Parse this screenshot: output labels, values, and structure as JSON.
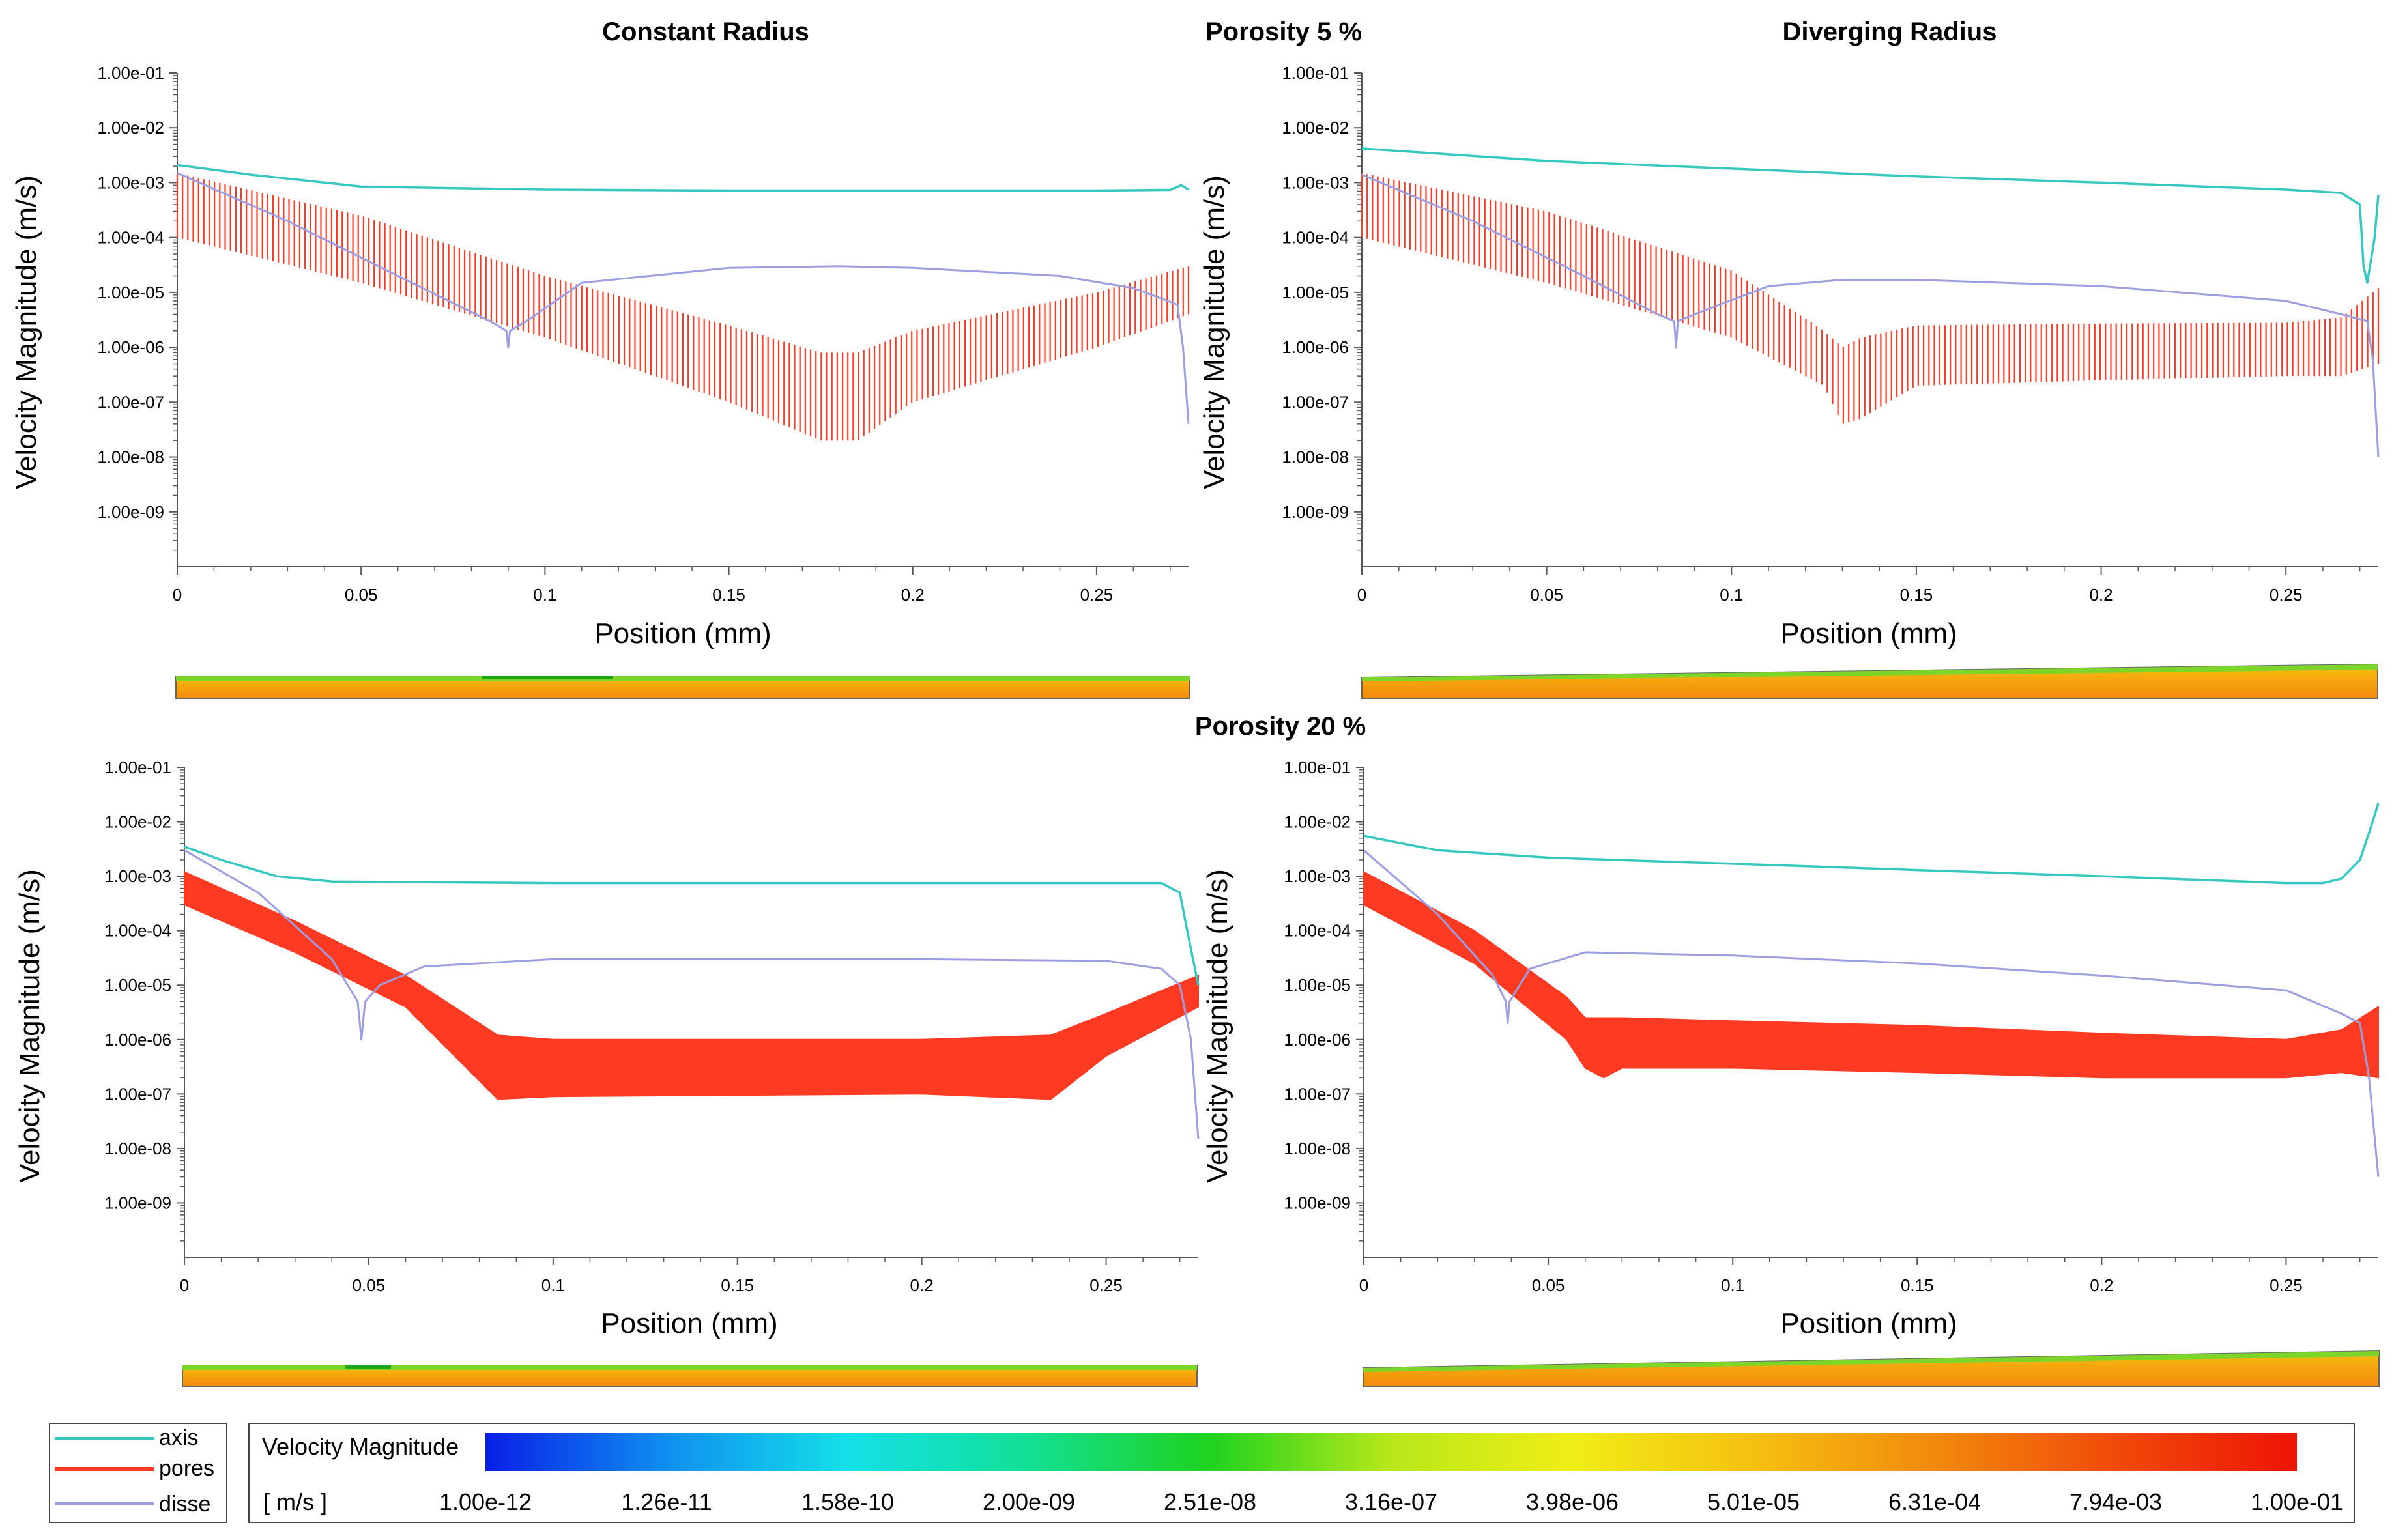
{
  "headers": {
    "left": "Constant Radius",
    "center_top": "Porosity 5 %",
    "right": "Diverging Radius",
    "center_bottom": "Porosity 20 %"
  },
  "legend": {
    "items": [
      {
        "label": "axis",
        "color": "#36c8c0"
      },
      {
        "label": "pores",
        "color": "#ff3a22"
      },
      {
        "label": "disse",
        "color": "#9d9ee0"
      }
    ]
  },
  "colorbar": {
    "title": "Velocity Magnitude",
    "units": "[ m/s ]",
    "ticks": [
      "1.00e-12",
      "1.26e-11",
      "1.58e-10",
      "2.00e-09",
      "2.51e-08",
      "3.16e-07",
      "3.98e-06",
      "5.01e-05",
      "6.31e-04",
      "7.94e-03",
      "1.00e-01"
    ],
    "colors": [
      "#0a1fe6",
      "#0f8ff0",
      "#14e0e8",
      "#12e095",
      "#1ed21e",
      "#b8e81a",
      "#f0ee16",
      "#f6c010",
      "#f28a0c",
      "#f04a08",
      "#ee1405"
    ]
  },
  "chart_data": [
    {
      "type": "line",
      "panel": "Constant Radius, Porosity 5 %",
      "xlabel": "Position (mm)",
      "ylabel": "Velocity Magnitude (m/s)",
      "yscale": "log",
      "xlim": [
        0,
        0.275
      ],
      "ylim": [
        "1.00e-10",
        "1.00e-01"
      ],
      "x_ticks": [
        "0",
        "0.05",
        "0.1",
        "0.15",
        "0.2",
        "0.25"
      ],
      "y_ticks": [
        "1.00e-01",
        "1.00e-02",
        "1.00e-03",
        "1.00e-04",
        "1.00e-05",
        "1.00e-06",
        "1.00e-07",
        "1.00e-08",
        "1.00e-09"
      ],
      "series": [
        {
          "name": "axis",
          "x": [
            0,
            0.02,
            0.05,
            0.1,
            0.15,
            0.2,
            0.25,
            0.27,
            0.273,
            0.275
          ],
          "y": [
            0.0021,
            0.0014,
            0.00085,
            0.00075,
            0.00072,
            0.00072,
            0.00072,
            0.00074,
            0.0009,
            0.00075
          ]
        },
        {
          "name": "disse",
          "x": [
            0,
            0.03,
            0.06,
            0.085,
            0.0895,
            0.09,
            0.0905,
            0.095,
            0.11,
            0.15,
            0.18,
            0.2,
            0.24,
            0.26,
            0.272,
            0.2735,
            0.275
          ],
          "y": [
            0.0015,
            0.0002,
            2e-05,
            3e-06,
            2e-06,
            1e-06,
            2e-06,
            3e-06,
            1.5e-05,
            2.8e-05,
            3e-05,
            2.8e-05,
            2e-05,
            1.2e-05,
            6e-06,
            1e-06,
            4e-08
          ]
        },
        {
          "name": "pores",
          "band": true,
          "x": [
            0,
            0.05,
            0.1,
            0.15,
            0.175,
            0.185,
            0.2,
            0.25,
            0.275
          ],
          "y_upper": [
            0.0015,
            0.00025,
            2e-05,
            2.5e-06,
            8e-07,
            8e-07,
            2e-06,
            1e-05,
            3e-05
          ],
          "y_lower": [
            0.0001,
            1.5e-05,
            1.5e-06,
            1e-07,
            2e-08,
            2e-08,
            1e-07,
            1e-06,
            4e-06
          ]
        }
      ]
    },
    {
      "type": "line",
      "panel": "Diverging Radius, Porosity 5 %",
      "xlabel": "Position (mm)",
      "ylabel": "Velocity Magnitude (m/s)",
      "yscale": "log",
      "xlim": [
        0,
        0.275
      ],
      "ylim": [
        "1.00e-10",
        "1.00e-01"
      ],
      "x_ticks": [
        "0",
        "0.05",
        "0.1",
        "0.15",
        "0.2",
        "0.25"
      ],
      "y_ticks": [
        "1.00e-01",
        "1.00e-02",
        "1.00e-03",
        "1.00e-04",
        "1.00e-05",
        "1.00e-06",
        "1.00e-07",
        "1.00e-08",
        "1.00e-09"
      ],
      "series": [
        {
          "name": "axis",
          "x": [
            0,
            0.05,
            0.1,
            0.15,
            0.2,
            0.25,
            0.265,
            0.27,
            0.271,
            0.272,
            0.274,
            0.275
          ],
          "y": [
            0.0042,
            0.0025,
            0.0018,
            0.0013,
            0.001,
            0.00075,
            0.00065,
            0.0004,
            3e-05,
            1.5e-05,
            0.0001,
            0.0006
          ]
        },
        {
          "name": "disse",
          "x": [
            0,
            0.03,
            0.06,
            0.08,
            0.0845,
            0.085,
            0.0855,
            0.09,
            0.11,
            0.13,
            0.15,
            0.2,
            0.25,
            0.265,
            0.272,
            0.2735,
            0.275
          ],
          "y": [
            0.0014,
            0.0002,
            2e-05,
            4e-06,
            3e-06,
            1e-06,
            3e-06,
            4e-06,
            1.3e-05,
            1.7e-05,
            1.7e-05,
            1.3e-05,
            7e-06,
            4e-06,
            3e-06,
            6e-07,
            1e-08
          ]
        },
        {
          "name": "pores",
          "band": true,
          "x": [
            0,
            0.05,
            0.1,
            0.125,
            0.13,
            0.135,
            0.15,
            0.2,
            0.25,
            0.265,
            0.275
          ],
          "y_upper": [
            0.0015,
            0.0003,
            2.5e-05,
            2e-06,
            1e-06,
            1.5e-06,
            2.5e-06,
            2.7e-06,
            2.8e-06,
            3.5e-06,
            1.2e-05
          ],
          "y_lower": [
            0.0001,
            1.5e-05,
            1.5e-06,
            2e-07,
            4e-08,
            5e-08,
            2e-07,
            2.5e-07,
            3e-07,
            3e-07,
            5e-07
          ]
        }
      ]
    },
    {
      "type": "line",
      "panel": "Constant Radius, Porosity 20 %",
      "xlabel": "Position (mm)",
      "ylabel": "Velocity Magnitude (m/s)",
      "yscale": "log",
      "xlim": [
        0,
        0.275
      ],
      "ylim": [
        "1.00e-10",
        "1.00e-01"
      ],
      "x_ticks": [
        "0",
        "0.05",
        "0.1",
        "0.15",
        "0.2",
        "0.25"
      ],
      "y_ticks": [
        "1.00e-01",
        "1.00e-02",
        "1.00e-03",
        "1.00e-04",
        "1.00e-05",
        "1.00e-06",
        "1.00e-07",
        "1.00e-08",
        "1.00e-09"
      ],
      "series": [
        {
          "name": "axis",
          "x": [
            0,
            0.01,
            0.025,
            0.04,
            0.1,
            0.2,
            0.265,
            0.27,
            0.272,
            0.275
          ],
          "y": [
            0.0035,
            0.002,
            0.001,
            0.0008,
            0.00075,
            0.00075,
            0.00075,
            0.0005,
            0.0001,
            1e-05
          ]
        },
        {
          "name": "disse",
          "x": [
            0,
            0.02,
            0.04,
            0.047,
            0.048,
            0.049,
            0.053,
            0.065,
            0.1,
            0.2,
            0.25,
            0.265,
            0.27,
            0.273,
            0.275
          ],
          "y": [
            0.003,
            0.0005,
            3e-05,
            5e-06,
            1e-06,
            5e-06,
            1e-05,
            2.2e-05,
            3e-05,
            3e-05,
            2.8e-05,
            2e-05,
            1e-05,
            1e-06,
            1.5e-08
          ]
        },
        {
          "name": "pores",
          "band": true,
          "x": [
            0,
            0.03,
            0.06,
            0.085,
            0.1,
            0.2,
            0.235,
            0.25,
            0.275
          ],
          "y_upper": [
            0.0012,
            0.00015,
            1.5e-05,
            1.2e-06,
            1e-06,
            1e-06,
            1.2e-06,
            3e-06,
            1.5e-05
          ],
          "y_lower": [
            0.0003,
            4e-05,
            4e-06,
            8e-08,
            9e-08,
            1e-07,
            8e-08,
            5e-07,
            4e-06
          ]
        }
      ]
    },
    {
      "type": "line",
      "panel": "Diverging Radius, Porosity 20 %",
      "xlabel": "Position (mm)",
      "ylabel": "Velocity Magnitude (m/s)",
      "yscale": "log",
      "xlim": [
        0,
        0.275
      ],
      "ylim": [
        "1.00e-10",
        "1.00e-01"
      ],
      "x_ticks": [
        "0",
        "0.05",
        "0.1",
        "0.15",
        "0.2",
        "0.25"
      ],
      "y_ticks": [
        "1.00e-01",
        "1.00e-02",
        "1.00e-03",
        "1.00e-04",
        "1.00e-05",
        "1.00e-06",
        "1.00e-07",
        "1.00e-08",
        "1.00e-09"
      ],
      "series": [
        {
          "name": "axis",
          "x": [
            0,
            0.02,
            0.05,
            0.1,
            0.15,
            0.2,
            0.25,
            0.26,
            0.265,
            0.27,
            0.273,
            0.275
          ],
          "y": [
            0.0055,
            0.003,
            0.0022,
            0.0017,
            0.0013,
            0.001,
            0.00075,
            0.00075,
            0.0009,
            0.002,
            0.008,
            0.022
          ]
        },
        {
          "name": "disse",
          "x": [
            0,
            0.02,
            0.035,
            0.0385,
            0.039,
            0.0395,
            0.045,
            0.06,
            0.1,
            0.15,
            0.2,
            0.25,
            0.265,
            0.27,
            0.2725,
            0.275
          ],
          "y": [
            0.003,
            0.0002,
            1.5e-05,
            5e-06,
            2e-06,
            5e-06,
            2e-05,
            4e-05,
            3.5e-05,
            2.5e-05,
            1.5e-05,
            8e-06,
            3e-06,
            2e-06,
            2e-07,
            3e-09
          ]
        },
        {
          "name": "pores",
          "band": true,
          "x": [
            0,
            0.03,
            0.055,
            0.06,
            0.065,
            0.07,
            0.1,
            0.15,
            0.2,
            0.25,
            0.265,
            0.275
          ],
          "y_upper": [
            0.0012,
            0.0001,
            6e-06,
            2.5e-06,
            2.5e-06,
            2.5e-06,
            2.2e-06,
            1.8e-06,
            1.3e-06,
            1e-06,
            1.5e-06,
            4e-06
          ],
          "y_lower": [
            0.0003,
            2.5e-05,
            1e-06,
            3e-07,
            2e-07,
            3e-07,
            3e-07,
            2.5e-07,
            2e-07,
            2e-07,
            2.5e-07,
            2e-07
          ]
        }
      ]
    }
  ]
}
